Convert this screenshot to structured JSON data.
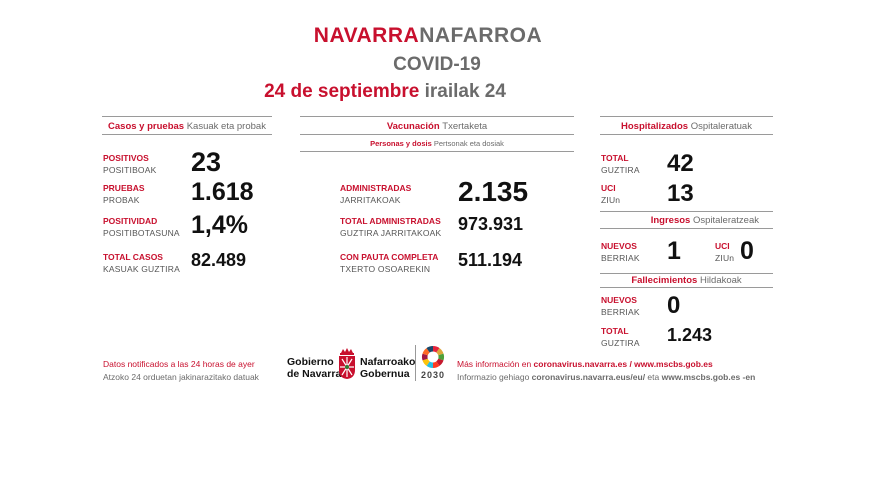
{
  "header": {
    "title_es": "NAVARRA",
    "title_eu": "NAFARROA",
    "subtitle": "COVID-19",
    "date_es": "24 de septiembre",
    "date_eu": "irailak 24"
  },
  "cases": {
    "heading_es": "Casos y pruebas",
    "heading_eu": "Kasuak eta probak",
    "rows": [
      {
        "label_es": "POSITIVOS",
        "label_eu": "POSITIBOAK",
        "value": "23"
      },
      {
        "label_es": "PRUEBAS",
        "label_eu": "PROBAK",
        "value": "1.618"
      },
      {
        "label_es": "POSITIVIDAD",
        "label_eu": "POSITIBOTASUNA",
        "value": "1,4%"
      },
      {
        "label_es": "TOTAL CASOS",
        "label_eu": "KASUAK GUZTIRA",
        "value": "82.489"
      }
    ]
  },
  "vaccination": {
    "heading_es": "Vacunación",
    "heading_eu": "Txertaketa",
    "sub_es": "Personas y dosis",
    "sub_eu": "Pertsonak eta dosiak",
    "rows": [
      {
        "label_es": "ADMINISTRADAS",
        "label_eu": "JARRITAKOAK",
        "value": "2.135"
      },
      {
        "label_es": "TOTAL ADMINISTRADAS",
        "label_eu": "GUZTIRA JARRITAKOAK",
        "value": "973.931"
      },
      {
        "label_es": "CON PAUTA COMPLETA",
        "label_eu": "TXERTO OSOAREKIN",
        "value": "511.194"
      }
    ]
  },
  "hospital": {
    "heading_es": "Hospitalizados",
    "heading_eu": "Ospitaleratuak",
    "total_es": "TOTAL",
    "total_eu": "GUZTIRA",
    "total_value": "42",
    "uci_es": "UCI",
    "uci_eu": "ZIUn",
    "uci_value": "13"
  },
  "admissions": {
    "heading_es": "Ingresos",
    "heading_eu": "Ospitaleratzeak",
    "new_es": "NUEVOS",
    "new_eu": "BERRIAK",
    "new_value": "1",
    "uci_es": "UCI",
    "uci_eu": "ZIUn",
    "uci_value": "0"
  },
  "deaths": {
    "heading_es": "Fallecimientos",
    "heading_eu": "Hildakoak",
    "new_es": "NUEVOS",
    "new_eu": "BERRIAK",
    "new_value": "0",
    "total_es": "TOTAL",
    "total_eu": "GUZTIRA",
    "total_value": "1.243"
  },
  "footer": {
    "note_es": "Datos notificados a las 24 horas de ayer",
    "note_eu": "Atzoko 24 orduetan jakinarazitako datuak",
    "gov_es_line1": "Gobierno",
    "gov_es_line2": "de Navarra",
    "gov_eu_line1": "Nafarroako",
    "gov_eu_line2": "Gobernua",
    "agenda_text": "2030",
    "info_es_prefix": "Más información en ",
    "info_es_links": "coronavirus.navarra.es / www.mscbs.gob.es",
    "info_eu_prefix": "Informazio gehiago ",
    "info_eu_link1": "coronavirus.navarra.eus/eu/",
    "info_eu_mid": " eta ",
    "info_eu_link2": "www.mscbs.gob.es -en"
  },
  "colors": {
    "accent": "#c8102e",
    "grey": "#6b6b6b"
  }
}
